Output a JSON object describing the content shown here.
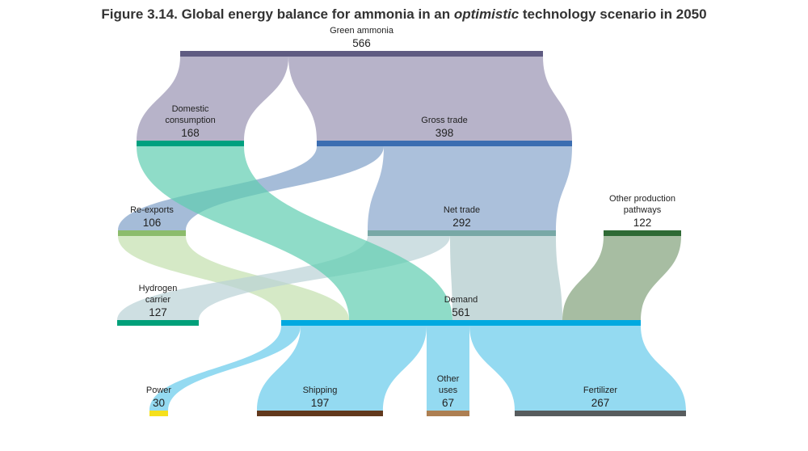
{
  "title": {
    "prefix": "Figure 3.14. Global energy balance for ammonia in an ",
    "emphasis": "optimistic",
    "suffix": " technology scenario in 2050"
  },
  "nodes": {
    "green_ammonia": {
      "label": [
        "Green ammonia"
      ],
      "value": "566",
      "color": "#5f5b82"
    },
    "domestic": {
      "label": [
        "Domestic",
        "consumption"
      ],
      "value": "168",
      "color": "#00a07f"
    },
    "gross_trade": {
      "label": [
        "Gross trade"
      ],
      "value": "398",
      "color": "#3b6db1"
    },
    "re_exports": {
      "label": [
        "Re-exports"
      ],
      "value": "106",
      "color": "#8cbc6c"
    },
    "net_trade": {
      "label": [
        "Net trade"
      ],
      "value": "292",
      "color": "#78a8a6"
    },
    "other_production": {
      "label": [
        "Other production",
        "pathways"
      ],
      "value": "122",
      "color": "#2e6a34"
    },
    "hydrogen_carrier": {
      "label": [
        "Hydrogen",
        "carrier"
      ],
      "value": "127",
      "color": "#00a07a"
    },
    "demand": {
      "label": [
        "Demand"
      ],
      "value": "561",
      "color": "#00a9e0"
    },
    "power": {
      "label": [
        "Power"
      ],
      "value": "30",
      "color": "#f5e01c"
    },
    "shipping": {
      "label": [
        "Shipping"
      ],
      "value": "197",
      "color": "#62391d"
    },
    "other_uses": {
      "label": [
        "Other",
        "uses"
      ],
      "value": "67",
      "color": "#ad7f52"
    },
    "fertilizer": {
      "label": [
        "Fertilizer"
      ],
      "value": "267",
      "color": "#585c5e"
    }
  }
}
